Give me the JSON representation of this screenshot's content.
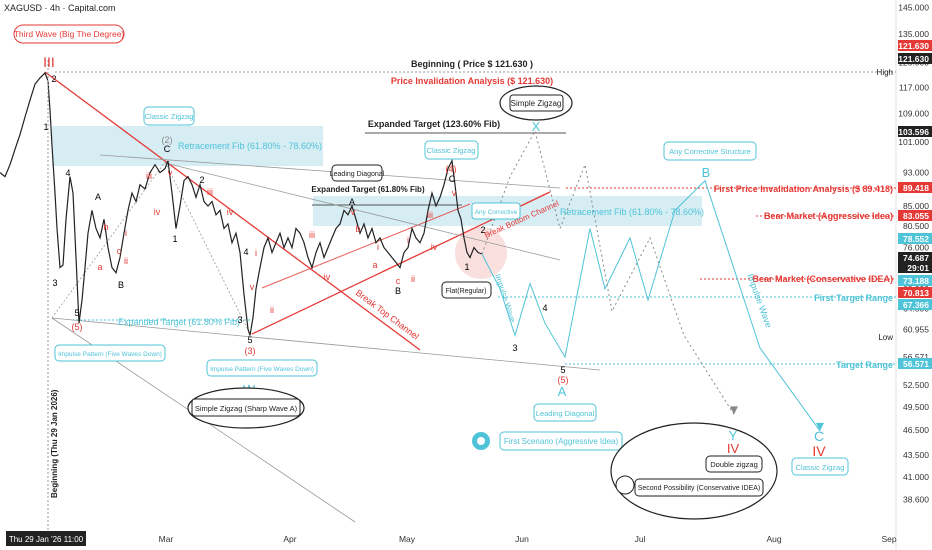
{
  "header": {
    "symbol": "XAGUSD · 4h · Capital.com"
  },
  "chart_data": {
    "type": "line",
    "title": "XAGUSD · 4h · Capital.com",
    "y_scale": "log",
    "ylim": [
      37.5,
      146
    ],
    "y_ticks": [
      "145.000",
      "135.000",
      "125.000",
      "117.000",
      "109.000",
      "101.000",
      "93.000",
      "85.000",
      "80.500",
      "76.000",
      "72.000",
      "68.000",
      "64.500",
      "60.955",
      "56.571",
      "52.500",
      "49.500",
      "46.500",
      "43.500",
      "41.000",
      "38.600"
    ],
    "x_ticks": [
      "Mar",
      "Apr",
      "May",
      "Jun",
      "Jul",
      "Aug",
      "Sep"
    ],
    "x_cursor_label": "Thu 29 Jan '26  11:00",
    "vertical_label": "Beginning (Thu 29 Jan 2026)",
    "price_tags": [
      {
        "value": "121.630",
        "color": "#e53935"
      },
      {
        "value": "121.630",
        "color": "#222222"
      },
      {
        "value": "103.596",
        "color": "#222222"
      },
      {
        "value": "89.418",
        "color": "#e53935"
      },
      {
        "value": "83.055",
        "color": "#e53935"
      },
      {
        "value": "78.552",
        "color": "#4fc3d7"
      },
      {
        "value": "74.687",
        "color": "#222222"
      },
      {
        "value": "29:01",
        "color": "#222222"
      },
      {
        "value": "73.188",
        "color": "#4fc3d7"
      },
      {
        "value": "70.813",
        "color": "#e53935"
      },
      {
        "value": "67.366",
        "color": "#4fc3d7"
      },
      {
        "value": "56.571",
        "color": "#4fc3d7"
      }
    ],
    "side_labels": {
      "high": "High",
      "low": "Low"
    },
    "series": [
      {
        "name": "",
        "points": [
          [
            0,
            93
          ],
          [
            5,
            92
          ],
          [
            10,
            95
          ],
          [
            15,
            99
          ],
          [
            20,
            103
          ],
          [
            25,
            108
          ],
          [
            30,
            113
          ],
          [
            35,
            118
          ],
          [
            40,
            120
          ],
          [
            45,
            121.6
          ],
          [
            48,
            119
          ],
          [
            50,
            110
          ],
          [
            52,
            100
          ],
          [
            55,
            88
          ],
          [
            57,
            80
          ],
          [
            60,
            72
          ],
          [
            63,
            72.5
          ],
          [
            66,
            82
          ],
          [
            70,
            92
          ],
          [
            73,
            88
          ],
          [
            76,
            74
          ],
          [
            79,
            62
          ],
          [
            82,
            66
          ],
          [
            85,
            72
          ],
          [
            88,
            79
          ],
          [
            92,
            84
          ],
          [
            96,
            80
          ],
          [
            100,
            78
          ],
          [
            104,
            82
          ],
          [
            108,
            76
          ],
          [
            112,
            72
          ],
          [
            116,
            71
          ],
          [
            120,
            74
          ],
          [
            124,
            79
          ],
          [
            128,
            84
          ],
          [
            132,
            88
          ],
          [
            136,
            86
          ],
          [
            140,
            90
          ],
          [
            145,
            89
          ],
          [
            150,
            93
          ],
          [
            155,
            95
          ],
          [
            160,
            93
          ],
          [
            165,
            94
          ],
          [
            168,
            96
          ],
          [
            172,
            88
          ],
          [
            176,
            80
          ],
          [
            180,
            85
          ],
          [
            184,
            91
          ],
          [
            188,
            92
          ],
          [
            192,
            90
          ],
          [
            196,
            87
          ],
          [
            200,
            90
          ],
          [
            204,
            86
          ],
          [
            208,
            85
          ],
          [
            212,
            86
          ],
          [
            216,
            83
          ],
          [
            220,
            84
          ],
          [
            224,
            80
          ],
          [
            228,
            81
          ],
          [
            232,
            77
          ],
          [
            236,
            79
          ],
          [
            240,
            75
          ],
          [
            244,
            67
          ],
          [
            248,
            61
          ],
          [
            250,
            60
          ],
          [
            253,
            63
          ],
          [
            256,
            68
          ],
          [
            260,
            72
          ],
          [
            264,
            76
          ],
          [
            268,
            78
          ],
          [
            272,
            75
          ],
          [
            276,
            77
          ],
          [
            280,
            79
          ],
          [
            284,
            76
          ],
          [
            288,
            78
          ],
          [
            292,
            76
          ],
          [
            296,
            80
          ],
          [
            300,
            79
          ],
          [
            304,
            77
          ],
          [
            308,
            74
          ],
          [
            312,
            72
          ],
          [
            316,
            75
          ],
          [
            320,
            77
          ],
          [
            324,
            74
          ],
          [
            328,
            76
          ],
          [
            332,
            78
          ],
          [
            336,
            80
          ],
          [
            340,
            81
          ],
          [
            344,
            84
          ],
          [
            348,
            83
          ],
          [
            352,
            85
          ],
          [
            356,
            82
          ],
          [
            360,
            79
          ],
          [
            364,
            81
          ],
          [
            368,
            78
          ],
          [
            372,
            80
          ],
          [
            376,
            77
          ],
          [
            380,
            78
          ],
          [
            384,
            76
          ],
          [
            388,
            75
          ],
          [
            392,
            74
          ],
          [
            396,
            73
          ],
          [
            400,
            72
          ],
          [
            404,
            75
          ],
          [
            408,
            76
          ],
          [
            412,
            80
          ],
          [
            416,
            78
          ],
          [
            420,
            77
          ],
          [
            424,
            79
          ],
          [
            428,
            84
          ],
          [
            432,
            88
          ],
          [
            436,
            85
          ],
          [
            440,
            87
          ],
          [
            444,
            90
          ],
          [
            448,
            94
          ],
          [
            452,
            96
          ],
          [
            455,
            90
          ],
          [
            458,
            84
          ],
          [
            461,
            82
          ],
          [
            464,
            78
          ],
          [
            467,
            75
          ],
          [
            470,
            74
          ],
          [
            474,
            76
          ],
          [
            478,
            75
          ],
          [
            482,
            74.7
          ]
        ]
      }
    ],
    "projections": [
      {
        "name": "Impulse Wave",
        "color": "#4fc3d7",
        "points": [
          [
            482,
            74.7
          ],
          [
            500,
            68
          ],
          [
            515,
            60
          ],
          [
            530,
            69
          ],
          [
            545,
            62
          ],
          [
            565,
            56.6
          ],
          [
            590,
            80
          ],
          [
            605,
            68
          ],
          [
            630,
            78
          ],
          [
            648,
            66
          ],
          [
            675,
            84
          ],
          [
            705,
            91
          ],
          [
            760,
            58
          ],
          [
            820,
            46.4
          ]
        ]
      },
      {
        "name": "",
        "color": "#888888",
        "points": [
          [
            482,
            74.7
          ],
          [
            510,
            92
          ],
          [
            535,
            104
          ],
          [
            560,
            80
          ],
          [
            585,
            95
          ],
          [
            612,
            64
          ],
          [
            650,
            78
          ],
          [
            684,
            60
          ],
          [
            734,
            48.5
          ]
        ]
      }
    ]
  },
  "annotations": {
    "third_wave": "Third Wave (Big The Degree)",
    "wave_III": "III",
    "beginning_price": "Beginning ( Price $ 121.630 )",
    "invalidation_main": "Price Invalidation Analysis ($ 121.630)",
    "simple_zigzag_top": "Simple Zigzag",
    "wave_X": "X",
    "expanded_target_123": "Expanded Target (123.60% Fib)",
    "classic_zigzag_left": "Classic Zigzag",
    "retracement_left": "Retracement Fib (61.80% - 78.60%)",
    "leading_diagonal_top": "Leading Diagonal",
    "expanded_target_61_top": "Expanded Target (61.80% Fib)",
    "classic_zigzag_mid": "Classic Zigzag",
    "any_corrective_small": "Any Corrective",
    "retracement_right": "Retracement Fib (61.80% - 78.60%)",
    "any_corrective_structure": "Any Corrective Structure",
    "wave_B_cyan": "B",
    "first_invalidation": "First Price Invalidation Analysis ($ 89.418)",
    "bear_aggressive": "Bear Market (Aggressive Idea)",
    "bear_conservative": "Bear Market (Conservative IDEA)",
    "first_target": "First Target Range",
    "target_range": "Target Range",
    "break_bottom": "Break Bottom Channel",
    "break_top": "Break Top Channel",
    "impulse_wave_1": "Impulse Wave",
    "impulse_wave_2": "Impulse Wave",
    "flat_regular": "Flat(Regular)",
    "expanded_target_61_left": "Expanded Target (61.80% Fib)",
    "impulse_pattern_left": "Impulse Pattern (Five Waves Down)",
    "impulse_pattern_mid": "Impulse Pattern (Five Waves Down)",
    "wave_W": "W",
    "simple_zigzag_sharp": "Simple Zigzag (Sharp Wave A)",
    "leading_diagonal_bottom": "Leading Diagonal",
    "first_scenario": "First Scenario (Aggressive Idea)",
    "wave_A_cyan": "A",
    "wave_Y": "Y",
    "wave_IV_a": "IV",
    "double_zigzag": "Double zigzag",
    "second_possibility": "Second Possibility (Conservative IDEA)",
    "wave_C_cyan": "C",
    "wave_IV_b": "IV",
    "classic_zigzag_right": "Classic Zigzag"
  },
  "wave_labels": [
    {
      "t": "1",
      "c": "#000",
      "x": 46,
      "y": 130
    },
    {
      "t": "2",
      "c": "#000",
      "x": 54,
      "y": 82
    },
    {
      "t": "3",
      "c": "#000",
      "x": 55,
      "y": 286
    },
    {
      "t": "4",
      "c": "#000",
      "x": 68,
      "y": 176
    },
    {
      "t": "5",
      "c": "#000",
      "x": 77,
      "y": 316
    },
    {
      "t": "(5)",
      "c": "#e53935",
      "x": 77,
      "y": 330
    },
    {
      "t": "A",
      "c": "#000",
      "x": 98,
      "y": 200
    },
    {
      "t": "b",
      "c": "#e53935",
      "x": 106,
      "y": 230
    },
    {
      "t": "a",
      "c": "#e53935",
      "x": 100,
      "y": 270
    },
    {
      "t": "c",
      "c": "#e53935",
      "x": 119,
      "y": 254
    },
    {
      "t": "B",
      "c": "#000",
      "x": 121,
      "y": 288
    },
    {
      "t": "i",
      "c": "#e53935",
      "x": 126,
      "y": 236
    },
    {
      "t": "ii",
      "c": "#e53935",
      "x": 126,
      "y": 264
    },
    {
      "t": "iii",
      "c": "#e53935",
      "x": 149,
      "y": 179
    },
    {
      "t": "iv",
      "c": "#e53935",
      "x": 157,
      "y": 215
    },
    {
      "t": "(2)",
      "c": "#888",
      "x": 167,
      "y": 143
    },
    {
      "t": "C",
      "c": "#000",
      "x": 167,
      "y": 152
    },
    {
      "t": "v",
      "c": "#e53935",
      "x": 170,
      "y": 176
    },
    {
      "t": "1",
      "c": "#000",
      "x": 175,
      "y": 242
    },
    {
      "t": "2",
      "c": "#000",
      "x": 202,
      "y": 183
    },
    {
      "t": "iii",
      "c": "#e53935",
      "x": 210,
      "y": 195
    },
    {
      "t": "iv",
      "c": "#e53935",
      "x": 230,
      "y": 215
    },
    {
      "t": "i",
      "c": "#e53935",
      "x": 256,
      "y": 256
    },
    {
      "t": "ii",
      "c": "#e53935",
      "x": 272,
      "y": 313
    },
    {
      "t": "v",
      "c": "#e53935",
      "x": 252,
      "y": 290
    },
    {
      "t": "4",
      "c": "#000",
      "x": 246,
      "y": 255
    },
    {
      "t": "3",
      "c": "#000",
      "x": 240,
      "y": 323
    },
    {
      "t": "5",
      "c": "#000",
      "x": 250,
      "y": 343
    },
    {
      "t": "(3)",
      "c": "#e53935",
      "x": 250,
      "y": 354
    },
    {
      "t": "iii",
      "c": "#e53935",
      "x": 312,
      "y": 238
    },
    {
      "t": "iv",
      "c": "#e53935",
      "x": 327,
      "y": 280
    },
    {
      "t": "A",
      "c": "#000",
      "x": 352,
      "y": 205
    },
    {
      "t": "v",
      "c": "#e53935",
      "x": 353,
      "y": 215
    },
    {
      "t": "i",
      "c": "#e53935",
      "x": 378,
      "y": 250
    },
    {
      "t": "a",
      "c": "#e53935",
      "x": 375,
      "y": 268
    },
    {
      "t": "b",
      "c": "#e53935",
      "x": 358,
      "y": 232
    },
    {
      "t": "c",
      "c": "#e53935",
      "x": 398,
      "y": 284
    },
    {
      "t": "B",
      "c": "#000",
      "x": 398,
      "y": 294
    },
    {
      "t": "ii",
      "c": "#e53935",
      "x": 413,
      "y": 282
    },
    {
      "t": "i",
      "c": "#e53935",
      "x": 408,
      "y": 243
    },
    {
      "t": "iii",
      "c": "#e53935",
      "x": 430,
      "y": 218
    },
    {
      "t": "iv",
      "c": "#e53935",
      "x": 434,
      "y": 250
    },
    {
      "t": "(4)",
      "c": "#e53935",
      "x": 451,
      "y": 172
    },
    {
      "t": "C",
      "c": "#000",
      "x": 452,
      "y": 182
    },
    {
      "t": "v",
      "c": "#e53935",
      "x": 454,
      "y": 196
    },
    {
      "t": "2",
      "c": "#000",
      "x": 483,
      "y": 233
    },
    {
      "t": "1",
      "c": "#000",
      "x": 467,
      "y": 270
    },
    {
      "t": "4",
      "c": "#000",
      "x": 545,
      "y": 311
    },
    {
      "t": "3",
      "c": "#000",
      "x": 515,
      "y": 351
    },
    {
      "t": "5",
      "c": "#000",
      "x": 563,
      "y": 373
    },
    {
      "t": "(5)",
      "c": "#e53935",
      "x": 563,
      "y": 383
    }
  ],
  "colors": {
    "cyan": "#4fc3d7",
    "red": "#e53935",
    "black": "#222222",
    "zone": "#cfeaf2"
  }
}
